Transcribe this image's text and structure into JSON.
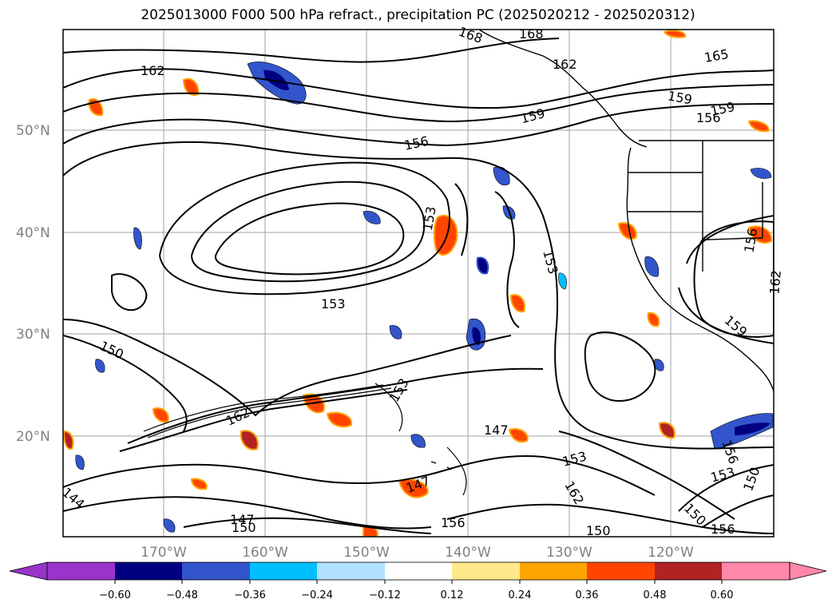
{
  "title": "2025013000 F000 500 hPa refract., precipitation PC (2025020212 - 2025020312)",
  "map": {
    "lat_ticks": [
      "50°N",
      "40°N",
      "30°N",
      "20°N"
    ],
    "lon_ticks": [
      "170°W",
      "160°W",
      "150°W",
      "140°W",
      "130°W",
      "120°W"
    ],
    "contour_labels": [
      "162",
      "168",
      "168",
      "162",
      "165",
      "159",
      "159",
      "159",
      "156",
      "156",
      "153",
      "153",
      "153",
      "150",
      "153",
      "162",
      "147",
      "153",
      "147",
      "162",
      "156",
      "150",
      "144",
      "147",
      "150",
      "156",
      "150",
      "156",
      "156",
      "159",
      "162",
      "153",
      "150"
    ],
    "colors": {
      "contour": "#000000",
      "grid": "#a0a0a0",
      "coast": "#000000"
    }
  },
  "colorbar": {
    "ticks": [
      "−0.60",
      "−0.48",
      "−0.36",
      "−0.24",
      "−0.12",
      "0.12",
      "0.24",
      "0.36",
      "0.48",
      "0.60"
    ],
    "colors": [
      "#9933cc",
      "#000080",
      "#3355cc",
      "#00bfff",
      "#b0e0ff",
      "#ffffff",
      "#ffe88a",
      "#ffa500",
      "#ff4500",
      "#b22222",
      "#ff88aa"
    ]
  }
}
